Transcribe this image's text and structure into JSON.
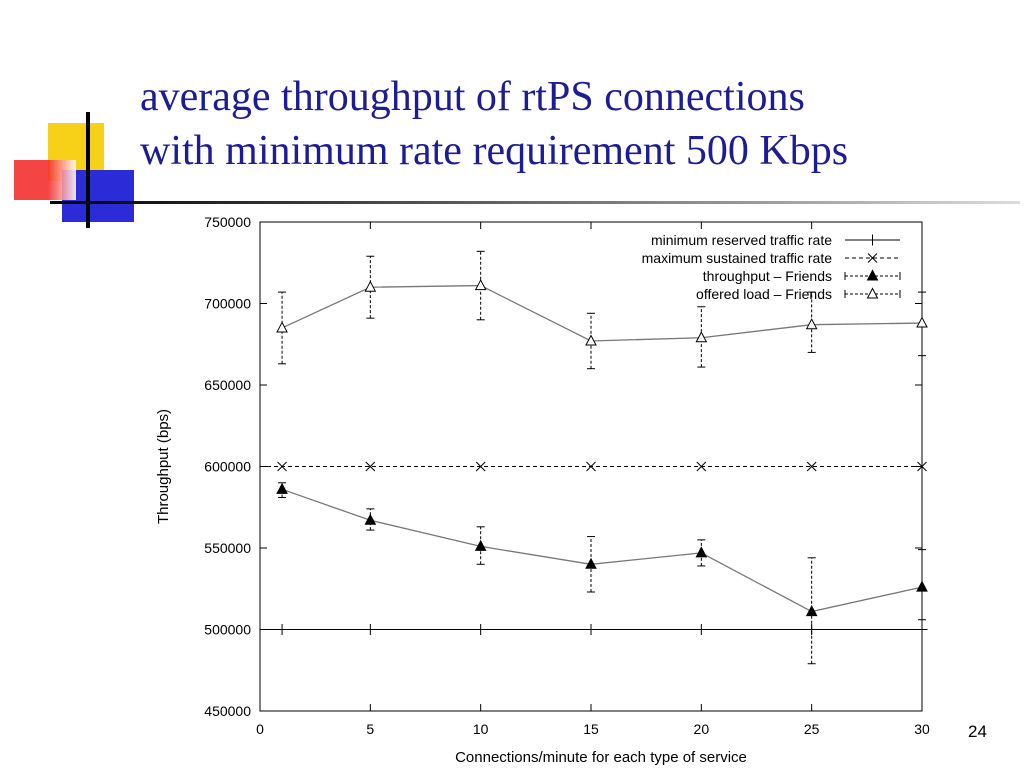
{
  "slide": {
    "title_line1": "average throughput of rtPS connections",
    "title_line2": "with minimum rate requirement 500 Kbps",
    "page_number": "24",
    "colors": {
      "title": "#1c1c96",
      "accent_yellow": "#f7d117",
      "accent_red": "#f42a2a",
      "accent_blue": "#2b2bd8",
      "rule": "#000000"
    }
  },
  "chart_data": {
    "type": "line",
    "xlabel": "Connections/minute for each type of service",
    "ylabel": "Throughput (bps)",
    "xlim": [
      0,
      30
    ],
    "ylim": [
      450000,
      750000
    ],
    "xticks": [
      0,
      5,
      10,
      15,
      20,
      25,
      30
    ],
    "yticks": [
      450000,
      500000,
      550000,
      600000,
      650000,
      700000,
      750000
    ],
    "grid": false,
    "legend_position": "top-right",
    "x": [
      1,
      5,
      10,
      15,
      20,
      25,
      30
    ],
    "series": [
      {
        "name": "minimum reserved traffic rate",
        "style": "solid",
        "marker": "plus",
        "values": [
          500000,
          500000,
          500000,
          500000,
          500000,
          500000,
          500000
        ]
      },
      {
        "name": "maximum sustained traffic rate",
        "style": "dashed",
        "marker": "cross",
        "values": [
          600000,
          600000,
          600000,
          600000,
          600000,
          600000,
          600000
        ]
      },
      {
        "name": "throughput – Friends",
        "style": "solid-gray",
        "marker": "filled-triangle",
        "values": [
          586000,
          567000,
          551000,
          540000,
          547000,
          511000,
          526000
        ],
        "error_low": [
          581000,
          561000,
          540000,
          523000,
          539000,
          479000,
          506000
        ],
        "error_high": [
          590000,
          574000,
          563000,
          557000,
          555000,
          544000,
          549000
        ]
      },
      {
        "name": "offered load – Friends",
        "style": "solid-gray",
        "marker": "open-triangle",
        "values": [
          685000,
          710000,
          711000,
          677000,
          679000,
          687000,
          688000
        ],
        "error_low": [
          663000,
          691000,
          690000,
          660000,
          661000,
          670000,
          668000
        ],
        "error_high": [
          707000,
          729000,
          732000,
          694000,
          698000,
          707000,
          707000
        ]
      }
    ]
  }
}
